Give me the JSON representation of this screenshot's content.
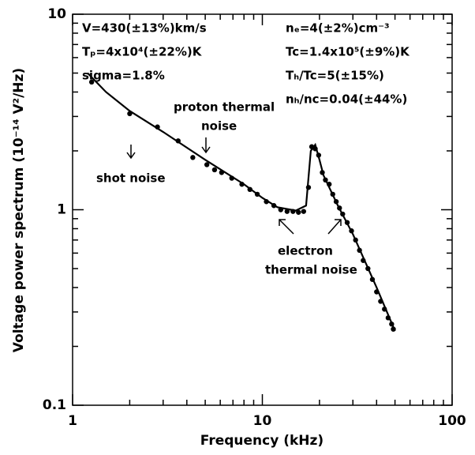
{
  "chart_data": {
    "type": "scatter",
    "xlabel": "Frequency (kHz)",
    "ylabel": "Voltage power spectrum (10⁻¹⁴ V²/Hz)",
    "log_x": true,
    "log_y": true,
    "xlim": [
      1,
      100
    ],
    "ylim": [
      0.1,
      10
    ],
    "xticks": [
      1,
      10,
      100
    ],
    "yticks": [
      0.1,
      1,
      10
    ],
    "xminorticks": [
      2,
      3,
      4,
      5,
      6,
      7,
      8,
      9,
      20,
      30,
      40,
      50,
      60,
      70,
      80,
      90
    ],
    "yminorticks": [
      0.2,
      0.3,
      0.4,
      0.5,
      0.6,
      0.7,
      0.8,
      0.9,
      2,
      3,
      4,
      5,
      6,
      7,
      8,
      9
    ],
    "color": "#000000",
    "points": {
      "x": [
        1.26,
        2.0,
        2.8,
        3.6,
        4.3,
        5.1,
        5.6,
        6.1,
        6.9,
        7.8,
        8.6,
        9.4,
        10.5,
        11.5,
        12.5,
        13.5,
        14.5,
        15.5,
        16.5,
        17.5,
        18.2,
        19.0,
        19.8,
        20.7,
        21.5,
        22.5,
        23.5,
        24.5,
        25.5,
        26.5,
        28,
        29.5,
        31,
        32.5,
        34,
        36,
        38,
        40,
        42,
        44,
        46,
        48,
        49
      ],
      "values": [
        4.5,
        3.1,
        2.65,
        2.25,
        1.85,
        1.7,
        1.6,
        1.55,
        1.45,
        1.35,
        1.27,
        1.2,
        1.1,
        1.05,
        1.0,
        0.98,
        0.98,
        0.97,
        0.98,
        1.3,
        2.1,
        2.05,
        1.9,
        1.55,
        1.42,
        1.35,
        1.2,
        1.1,
        1.02,
        0.95,
        0.86,
        0.78,
        0.7,
        0.62,
        0.55,
        0.5,
        0.44,
        0.38,
        0.34,
        0.31,
        0.28,
        0.26,
        0.245
      ]
    },
    "fit": {
      "x": [
        1.2,
        1.5,
        2,
        3,
        5,
        8,
        10,
        12,
        15,
        17,
        18,
        19,
        20,
        21,
        25,
        30,
        40,
        50
      ],
      "values": [
        5.0,
        4.0,
        3.2,
        2.5,
        1.8,
        1.35,
        1.15,
        1.03,
        0.99,
        1.05,
        2.0,
        2.15,
        1.8,
        1.5,
        1.05,
        0.75,
        0.4,
        0.24
      ]
    },
    "annotations": [
      "V=430(±13%)km/s",
      "Tₚ=4x10⁴(±22%)K",
      "sigma=1.8%",
      "nₑ=4(±2%)cm⁻³",
      "Tc=1.4x10⁵(±9%)K",
      "Tₕ/Tc=5(±15%)",
      "nₕ/nc=0.04(±44%)",
      "proton thermal",
      "noise",
      "shot noise",
      "electron",
      "thermal noise"
    ]
  }
}
